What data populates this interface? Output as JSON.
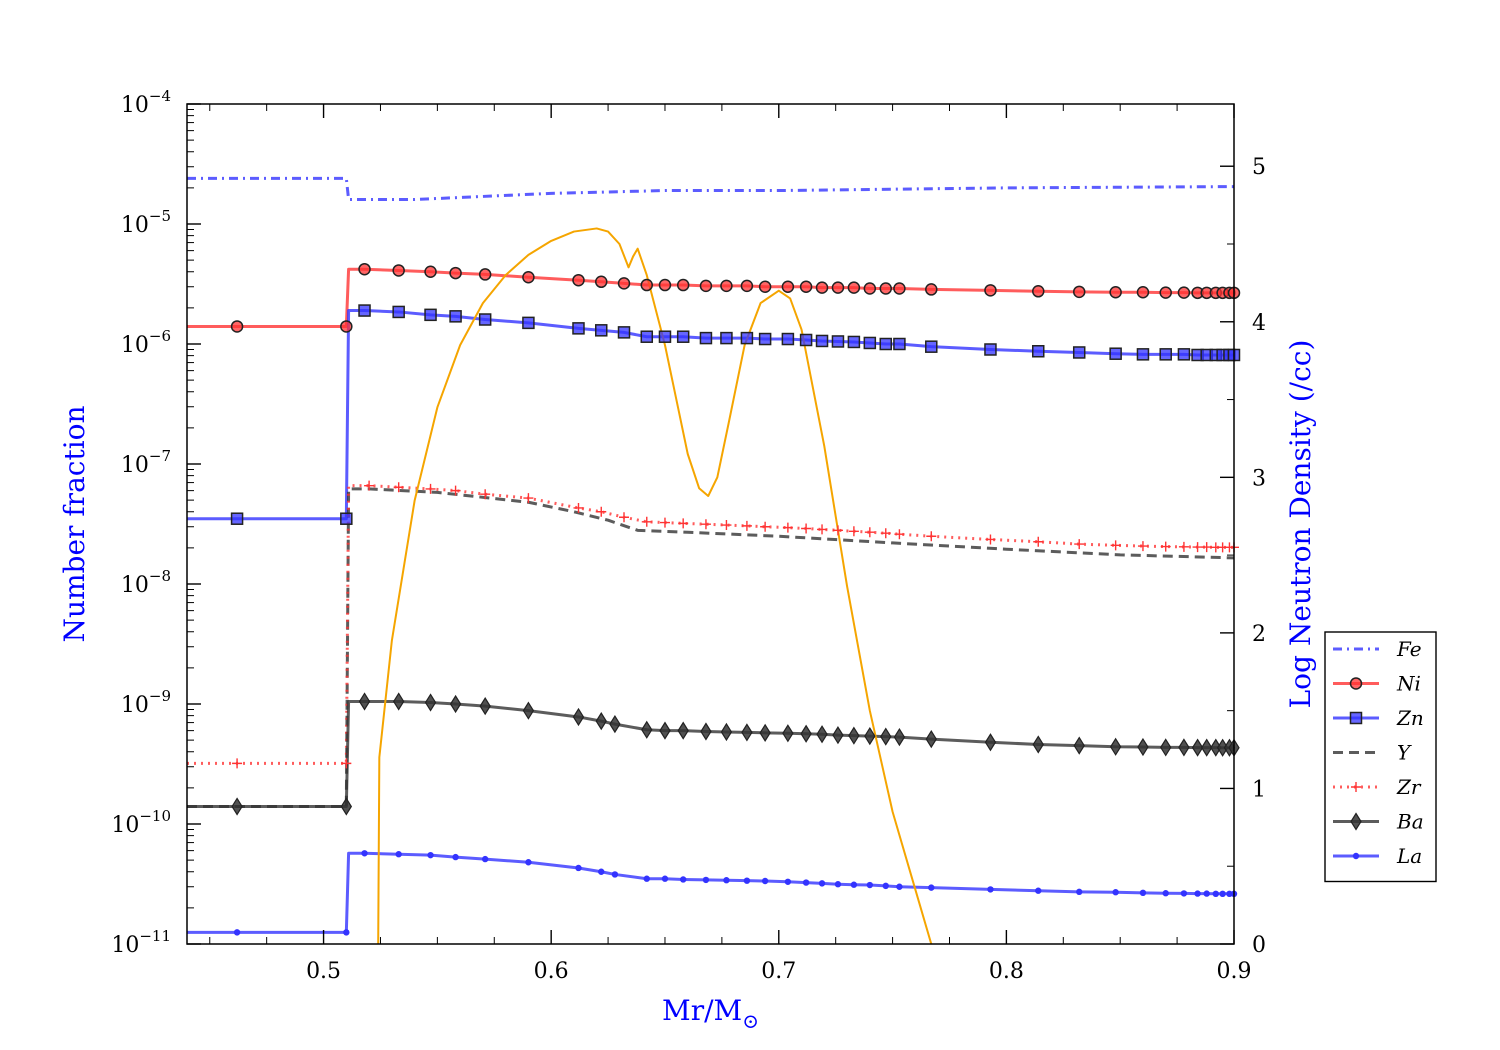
{
  "chart_data": {
    "type": "line",
    "xlabel": "Mr/M",
    "xlabel_sub": "⊙",
    "ylabel_left": "Number fraction",
    "ylabel_right": "Log Neutron Density (/cc)",
    "xlim": [
      0.44,
      0.9
    ],
    "ylim_left": [
      1e-11,
      0.0001
    ],
    "yscale_left": "log",
    "ylim_right": [
      0,
      5.4
    ],
    "x_ticks": [
      0.5,
      0.6,
      0.7,
      0.8,
      0.9
    ],
    "x_tick_labels": [
      "0.5",
      "0.6",
      "0.7",
      "0.8",
      "0.9"
    ],
    "y_left_ticks": [
      {
        "value": 0.0001,
        "base": "10",
        "exp": "−4"
      },
      {
        "value": 1e-05,
        "base": "10",
        "exp": "−5"
      },
      {
        "value": 1e-06,
        "base": "10",
        "exp": "−6"
      },
      {
        "value": 1e-07,
        "base": "10",
        "exp": "−7"
      },
      {
        "value": 1e-08,
        "base": "10",
        "exp": "−8"
      },
      {
        "value": 1e-09,
        "base": "10",
        "exp": "−9"
      },
      {
        "value": 1e-10,
        "base": "10",
        "exp": "−10"
      },
      {
        "value": 1e-11,
        "base": "10",
        "exp": "−11"
      }
    ],
    "y_right_ticks": [
      0,
      1,
      2,
      3,
      4,
      5
    ],
    "y_right_tick_labels": [
      "0",
      "1",
      "2",
      "3",
      "4",
      "5"
    ],
    "legend_position": "right",
    "series": [
      {
        "name": "Fe",
        "axis": "left",
        "color": "#3333ff",
        "style": "dashdot",
        "marker": "none",
        "x": [
          0.44,
          0.51,
          0.511,
          0.52,
          0.54,
          0.6,
          0.65,
          0.7,
          0.8,
          0.9
        ],
        "y": [
          2.4e-05,
          2.4e-05,
          1.6e-05,
          1.6e-05,
          1.6e-05,
          1.8e-05,
          1.9e-05,
          1.9e-05,
          2e-05,
          2.05e-05
        ]
      },
      {
        "name": "Ni",
        "axis": "left",
        "color": "#ff3333",
        "style": "solid",
        "marker": "circle",
        "x": [
          0.44,
          0.462,
          0.51,
          0.511,
          0.518,
          0.533,
          0.547,
          0.558,
          0.571,
          0.59,
          0.612,
          0.622,
          0.632,
          0.642,
          0.65,
          0.658,
          0.668,
          0.677,
          0.686,
          0.694,
          0.704,
          0.712,
          0.719,
          0.726,
          0.733,
          0.74,
          0.747,
          0.753,
          0.767,
          0.793,
          0.814,
          0.832,
          0.848,
          0.86,
          0.87,
          0.878,
          0.884,
          0.888,
          0.892,
          0.895,
          0.898,
          0.9
        ],
        "y": [
          1.4e-06,
          1.4e-06,
          1.4e-06,
          4.2e-06,
          4.2e-06,
          4.1e-06,
          4e-06,
          3.9e-06,
          3.8e-06,
          3.6e-06,
          3.4e-06,
          3.3e-06,
          3.2e-06,
          3.1e-06,
          3.1e-06,
          3.1e-06,
          3.05e-06,
          3.05e-06,
          3.05e-06,
          3e-06,
          3e-06,
          3e-06,
          2.95e-06,
          2.95e-06,
          2.95e-06,
          2.9e-06,
          2.9e-06,
          2.9e-06,
          2.85e-06,
          2.8e-06,
          2.75e-06,
          2.72e-06,
          2.7e-06,
          2.7e-06,
          2.68e-06,
          2.68e-06,
          2.67e-06,
          2.67e-06,
          2.67e-06,
          2.67e-06,
          2.67e-06,
          2.67e-06
        ],
        "marker_x": [
          0.462,
          0.51,
          0.518,
          0.533,
          0.547,
          0.558,
          0.571,
          0.59,
          0.612,
          0.622,
          0.632,
          0.642,
          0.65,
          0.658,
          0.668,
          0.677,
          0.686,
          0.694,
          0.704,
          0.712,
          0.719,
          0.726,
          0.733,
          0.74,
          0.747,
          0.753,
          0.767,
          0.793,
          0.814,
          0.832,
          0.848,
          0.86,
          0.87,
          0.878,
          0.884,
          0.888,
          0.892,
          0.895,
          0.898,
          0.9
        ]
      },
      {
        "name": "Zn",
        "axis": "left",
        "color": "#3333ff",
        "style": "solid",
        "marker": "square",
        "x": [
          0.44,
          0.462,
          0.51,
          0.511,
          0.518,
          0.533,
          0.547,
          0.558,
          0.571,
          0.59,
          0.612,
          0.622,
          0.632,
          0.642,
          0.65,
          0.658,
          0.668,
          0.677,
          0.686,
          0.694,
          0.704,
          0.712,
          0.719,
          0.726,
          0.733,
          0.74,
          0.747,
          0.753,
          0.767,
          0.793,
          0.814,
          0.832,
          0.848,
          0.86,
          0.87,
          0.878,
          0.884,
          0.888,
          0.892,
          0.895,
          0.898,
          0.9
        ],
        "y": [
          3.5e-08,
          3.5e-08,
          3.5e-08,
          1.9e-06,
          1.9e-06,
          1.85e-06,
          1.75e-06,
          1.7e-06,
          1.6e-06,
          1.5e-06,
          1.35e-06,
          1.3e-06,
          1.25e-06,
          1.15e-06,
          1.15e-06,
          1.15e-06,
          1.12e-06,
          1.12e-06,
          1.12e-06,
          1.1e-06,
          1.1e-06,
          1.08e-06,
          1.06e-06,
          1.05e-06,
          1.04e-06,
          1.02e-06,
          1e-06,
          1e-06,
          9.5e-07,
          9e-07,
          8.7e-07,
          8.5e-07,
          8.3e-07,
          8.2e-07,
          8.2e-07,
          8.2e-07,
          8.1e-07,
          8.1e-07,
          8.1e-07,
          8.1e-07,
          8.1e-07,
          8.1e-07
        ],
        "marker_x": [
          0.462,
          0.51,
          0.518,
          0.533,
          0.547,
          0.558,
          0.571,
          0.59,
          0.612,
          0.622,
          0.632,
          0.642,
          0.65,
          0.658,
          0.668,
          0.677,
          0.686,
          0.694,
          0.704,
          0.712,
          0.719,
          0.726,
          0.733,
          0.74,
          0.747,
          0.753,
          0.767,
          0.793,
          0.814,
          0.832,
          0.848,
          0.86,
          0.87,
          0.878,
          0.884,
          0.888,
          0.892,
          0.895,
          0.898,
          0.9
        ]
      },
      {
        "name": "Y",
        "axis": "left",
        "color": "#333333",
        "style": "dashed",
        "marker": "none",
        "x": [
          0.44,
          0.51,
          0.511,
          0.52,
          0.55,
          0.59,
          0.61,
          0.625,
          0.638,
          0.66,
          0.7,
          0.75,
          0.8,
          0.85,
          0.9
        ],
        "y": [
          1.4e-10,
          1.4e-10,
          6.2e-08,
          6.2e-08,
          5.8e-08,
          4.8e-08,
          4e-08,
          3.4e-08,
          2.8e-08,
          2.7e-08,
          2.5e-08,
          2.2e-08,
          1.95e-08,
          1.75e-08,
          1.65e-08
        ]
      },
      {
        "name": "Zr",
        "axis": "left",
        "color": "#ff3333",
        "style": "dotted",
        "marker": "plus",
        "x": [
          0.44,
          0.462,
          0.51,
          0.511,
          0.52,
          0.533,
          0.547,
          0.558,
          0.571,
          0.59,
          0.612,
          0.622,
          0.632,
          0.642,
          0.65,
          0.658,
          0.668,
          0.677,
          0.686,
          0.694,
          0.704,
          0.712,
          0.719,
          0.726,
          0.733,
          0.74,
          0.747,
          0.753,
          0.767,
          0.793,
          0.814,
          0.832,
          0.848,
          0.86,
          0.87,
          0.878,
          0.884,
          0.888,
          0.892,
          0.895,
          0.898,
          0.9
        ],
        "y": [
          3.2e-10,
          3.2e-10,
          3.2e-10,
          6.6e-08,
          6.6e-08,
          6.4e-08,
          6.2e-08,
          6e-08,
          5.6e-08,
          5.2e-08,
          4.3e-08,
          4e-08,
          3.6e-08,
          3.3e-08,
          3.25e-08,
          3.2e-08,
          3.15e-08,
          3.1e-08,
          3.05e-08,
          3e-08,
          2.95e-08,
          2.9e-08,
          2.85e-08,
          2.8e-08,
          2.75e-08,
          2.7e-08,
          2.65e-08,
          2.6e-08,
          2.5e-08,
          2.35e-08,
          2.25e-08,
          2.15e-08,
          2.1e-08,
          2.07e-08,
          2.05e-08,
          2.04e-08,
          2.03e-08,
          2.03e-08,
          2.02e-08,
          2.02e-08,
          2.02e-08,
          2.02e-08
        ],
        "marker_x": [
          0.462,
          0.51,
          0.52,
          0.533,
          0.547,
          0.558,
          0.571,
          0.59,
          0.612,
          0.622,
          0.632,
          0.642,
          0.65,
          0.658,
          0.668,
          0.677,
          0.686,
          0.694,
          0.704,
          0.712,
          0.719,
          0.726,
          0.733,
          0.74,
          0.747,
          0.753,
          0.767,
          0.793,
          0.814,
          0.832,
          0.848,
          0.86,
          0.87,
          0.878,
          0.884,
          0.888,
          0.892,
          0.895,
          0.898,
          0.9
        ]
      },
      {
        "name": "Ba",
        "axis": "left",
        "color": "#333333",
        "style": "solid",
        "marker": "diamond",
        "x": [
          0.44,
          0.462,
          0.51,
          0.511,
          0.518,
          0.533,
          0.547,
          0.558,
          0.571,
          0.59,
          0.612,
          0.622,
          0.628,
          0.642,
          0.65,
          0.658,
          0.668,
          0.677,
          0.686,
          0.694,
          0.704,
          0.712,
          0.719,
          0.726,
          0.733,
          0.74,
          0.747,
          0.753,
          0.767,
          0.793,
          0.814,
          0.832,
          0.848,
          0.86,
          0.87,
          0.878,
          0.884,
          0.888,
          0.892,
          0.895,
          0.898,
          0.9
        ],
        "y": [
          1.4e-10,
          1.4e-10,
          1.4e-10,
          1.05e-09,
          1.05e-09,
          1.05e-09,
          1.03e-09,
          1e-09,
          9.6e-10,
          8.8e-10,
          7.8e-10,
          7.2e-10,
          6.8e-10,
          6.1e-10,
          6e-10,
          6e-10,
          5.9e-10,
          5.85e-10,
          5.8e-10,
          5.75e-10,
          5.7e-10,
          5.65e-10,
          5.6e-10,
          5.5e-10,
          5.45e-10,
          5.4e-10,
          5.35e-10,
          5.3e-10,
          5.1e-10,
          4.8e-10,
          4.6e-10,
          4.5e-10,
          4.4e-10,
          4.38e-10,
          4.35e-10,
          4.35e-10,
          4.33e-10,
          4.33e-10,
          4.33e-10,
          4.32e-10,
          4.32e-10,
          4.32e-10
        ],
        "marker_x": [
          0.462,
          0.51,
          0.518,
          0.533,
          0.547,
          0.558,
          0.571,
          0.59,
          0.612,
          0.622,
          0.628,
          0.642,
          0.65,
          0.658,
          0.668,
          0.677,
          0.686,
          0.694,
          0.704,
          0.712,
          0.719,
          0.726,
          0.733,
          0.74,
          0.747,
          0.753,
          0.767,
          0.793,
          0.814,
          0.832,
          0.848,
          0.86,
          0.87,
          0.878,
          0.884,
          0.888,
          0.892,
          0.895,
          0.898,
          0.9
        ]
      },
      {
        "name": "La",
        "axis": "left",
        "color": "#3333ff",
        "style": "solid",
        "marker": "dot",
        "x": [
          0.44,
          0.462,
          0.51,
          0.511,
          0.518,
          0.533,
          0.547,
          0.558,
          0.571,
          0.59,
          0.612,
          0.622,
          0.628,
          0.642,
          0.65,
          0.658,
          0.668,
          0.677,
          0.686,
          0.694,
          0.704,
          0.712,
          0.719,
          0.726,
          0.733,
          0.74,
          0.747,
          0.753,
          0.767,
          0.793,
          0.814,
          0.832,
          0.848,
          0.86,
          0.87,
          0.878,
          0.884,
          0.888,
          0.892,
          0.895,
          0.898,
          0.9
        ],
        "y": [
          1.25e-11,
          1.25e-11,
          1.25e-11,
          5.7e-11,
          5.7e-11,
          5.6e-11,
          5.5e-11,
          5.3e-11,
          5.1e-11,
          4.8e-11,
          4.3e-11,
          4e-11,
          3.8e-11,
          3.5e-11,
          3.5e-11,
          3.45e-11,
          3.42e-11,
          3.4e-11,
          3.37e-11,
          3.35e-11,
          3.3e-11,
          3.25e-11,
          3.2e-11,
          3.15e-11,
          3.12e-11,
          3.1e-11,
          3.05e-11,
          3e-11,
          2.95e-11,
          2.85e-11,
          2.78e-11,
          2.72e-11,
          2.7e-11,
          2.67e-11,
          2.65e-11,
          2.64e-11,
          2.63e-11,
          2.63e-11,
          2.62e-11,
          2.62e-11,
          2.62e-11,
          2.62e-11
        ],
        "marker_x": [
          0.462,
          0.51,
          0.518,
          0.533,
          0.547,
          0.558,
          0.571,
          0.59,
          0.612,
          0.622,
          0.628,
          0.642,
          0.65,
          0.658,
          0.668,
          0.677,
          0.686,
          0.694,
          0.704,
          0.712,
          0.719,
          0.726,
          0.733,
          0.74,
          0.747,
          0.753,
          0.767,
          0.793,
          0.814,
          0.832,
          0.848,
          0.86,
          0.87,
          0.878,
          0.884,
          0.888,
          0.892,
          0.895,
          0.898,
          0.9
        ]
      },
      {
        "axis": "right",
        "color": "#f5a500",
        "style": "solid",
        "marker": "none",
        "x": [
          0.524,
          0.5245,
          0.53,
          0.54,
          0.55,
          0.56,
          0.57,
          0.58,
          0.59,
          0.6,
          0.61,
          0.62,
          0.625,
          0.63,
          0.634,
          0.636,
          0.638,
          0.642,
          0.65,
          0.655,
          0.66,
          0.665,
          0.669,
          0.673,
          0.678,
          0.685,
          0.692,
          0.7,
          0.705,
          0.71,
          0.72,
          0.73,
          0.74,
          0.75,
          0.76,
          0.767
        ],
        "y": [
          0,
          1.2,
          1.95,
          2.85,
          3.45,
          3.85,
          4.12,
          4.3,
          4.43,
          4.52,
          4.58,
          4.6,
          4.58,
          4.5,
          4.35,
          4.42,
          4.47,
          4.3,
          3.85,
          3.5,
          3.15,
          2.93,
          2.88,
          3.0,
          3.35,
          3.85,
          4.12,
          4.2,
          4.15,
          3.95,
          3.2,
          2.3,
          1.5,
          0.85,
          0.35,
          0
        ]
      }
    ]
  }
}
